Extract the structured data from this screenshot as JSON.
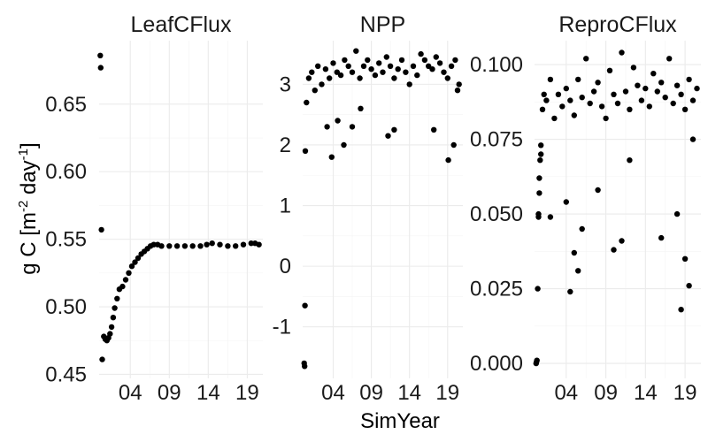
{
  "figure": {
    "xlabel": "SimYear",
    "ylabel_main": "g C [m",
    "ylabel_sup1": "-2",
    "ylabel_mid": " day",
    "ylabel_sup2": "-1",
    "ylabel_end": "]"
  },
  "chart_data": [
    {
      "type": "scatter",
      "title": "LeafCFlux",
      "xlabel": "SimYear",
      "ylabel": "g C [m-2 day-1]",
      "xlim": [
        0,
        21
      ],
      "ylim": [
        0.447,
        0.697
      ],
      "xticks": [
        4,
        9,
        14,
        19
      ],
      "xticklabels": [
        "04",
        "09",
        "14",
        "19"
      ],
      "yticks": [
        0.45,
        0.5,
        0.55,
        0.6,
        0.65
      ],
      "yticklabels": [
        "0.45",
        "0.50",
        "0.55",
        "0.60",
        "0.65"
      ],
      "grid": true,
      "legend": "none",
      "point_color": "#000000",
      "x": [
        0.15,
        0.2,
        0.3,
        0.4,
        0.6,
        0.8,
        1.0,
        1.2,
        1.4,
        1.6,
        1.8,
        2.0,
        2.3,
        2.6,
        3.0,
        3.4,
        3.8,
        4.2,
        4.6,
        5.0,
        5.4,
        5.8,
        6.2,
        6.6,
        7.0,
        7.5,
        8.0,
        9.0,
        10.0,
        11.0,
        12.0,
        13.0,
        13.8,
        14.5,
        15.5,
        16.5,
        17.5,
        18.5,
        19.5,
        20.0,
        20.5
      ],
      "y": [
        0.686,
        0.677,
        0.557,
        0.461,
        0.478,
        0.476,
        0.475,
        0.477,
        0.48,
        0.485,
        0.492,
        0.499,
        0.506,
        0.513,
        0.515,
        0.52,
        0.525,
        0.53,
        0.533,
        0.536,
        0.539,
        0.541,
        0.543,
        0.545,
        0.546,
        0.546,
        0.545,
        0.545,
        0.545,
        0.545,
        0.545,
        0.545,
        0.546,
        0.547,
        0.546,
        0.545,
        0.545,
        0.546,
        0.547,
        0.547,
        0.546
      ]
    },
    {
      "type": "scatter",
      "title": "NPP",
      "xlabel": "SimYear",
      "ylabel": "",
      "xlim": [
        0,
        21
      ],
      "ylim": [
        -1.85,
        3.72
      ],
      "xticks": [
        4,
        9,
        14,
        19
      ],
      "xticklabels": [
        "04",
        "09",
        "14",
        "19"
      ],
      "yticks": [
        -1,
        0,
        1,
        2,
        3
      ],
      "yticklabels": [
        "-1",
        "0",
        "1",
        "2",
        "3"
      ],
      "grid": true,
      "legend": "none",
      "point_color": "#000000",
      "x": [
        0.2,
        0.25,
        0.3,
        0.35,
        0.5,
        0.8,
        1.2,
        1.6,
        2.0,
        2.5,
        3.0,
        3.5,
        4.0,
        4.5,
        5.0,
        5.5,
        6.0,
        6.5,
        7.0,
        7.5,
        8.0,
        8.5,
        9.0,
        9.5,
        10.0,
        10.5,
        11.0,
        11.5,
        12.0,
        12.5,
        13.0,
        13.5,
        14.0,
        14.5,
        15.0,
        15.5,
        16.0,
        16.5,
        17.0,
        17.5,
        18.0,
        18.5,
        19.0,
        19.5,
        20.0,
        20.5,
        3.2,
        3.8,
        4.6,
        5.4,
        6.5,
        7.6,
        11.2,
        12.0,
        17.2,
        19.1,
        19.8,
        20.3
      ],
      "y": [
        -1.6,
        -1.65,
        -0.65,
        1.9,
        2.7,
        3.1,
        3.2,
        2.9,
        3.3,
        3.0,
        3.25,
        3.1,
        3.35,
        3.2,
        3.15,
        3.4,
        3.3,
        3.2,
        3.55,
        3.1,
        3.3,
        3.4,
        3.25,
        3.15,
        3.35,
        3.2,
        3.45,
        3.3,
        3.1,
        3.25,
        3.4,
        3.2,
        3.0,
        3.3,
        3.15,
        3.5,
        3.4,
        3.3,
        3.25,
        3.45,
        3.35,
        3.2,
        3.1,
        3.3,
        3.4,
        3.0,
        2.3,
        1.8,
        2.4,
        2.0,
        2.3,
        2.6,
        2.15,
        2.25,
        2.25,
        1.75,
        2.0,
        2.9
      ]
    },
    {
      "type": "scatter",
      "title": "ReproCFlux",
      "xlabel": "SimYear",
      "ylabel": "",
      "xlim": [
        0,
        21
      ],
      "ylim": [
        -0.005,
        0.108
      ],
      "xticks": [
        4,
        9,
        14,
        19
      ],
      "xticklabels": [
        "04",
        "09",
        "14",
        "19"
      ],
      "yticks": [
        0.0,
        0.025,
        0.05,
        0.075,
        0.1
      ],
      "yticklabels": [
        "0.000",
        "0.025",
        "0.050",
        "0.075",
        "0.100"
      ],
      "grid": true,
      "legend": "none",
      "point_color": "#000000",
      "x": [
        0.2,
        0.25,
        0.3,
        0.4,
        0.5,
        0.6,
        0.7,
        0.8,
        1.0,
        1.2,
        1.5,
        2.0,
        2.5,
        3.0,
        3.5,
        4.0,
        4.5,
        5.0,
        5.5,
        6.0,
        6.5,
        7.0,
        7.5,
        8.0,
        8.5,
        9.0,
        9.5,
        10.0,
        10.5,
        11.0,
        11.5,
        12.0,
        12.5,
        13.0,
        13.5,
        14.0,
        14.5,
        15.0,
        15.5,
        16.0,
        16.5,
        17.0,
        17.5,
        18.0,
        18.5,
        19.0,
        19.5,
        20.0,
        20.5,
        4.0,
        4.5,
        5.0,
        5.5,
        6.0,
        8.0,
        10.0,
        11.0,
        12.0,
        16.0,
        18.0,
        18.5,
        19.0,
        19.5,
        20.0,
        0.5,
        0.6,
        0.8,
        2.0
      ],
      "y": [
        0.0,
        0.0005,
        0.001,
        0.025,
        0.05,
        0.062,
        0.068,
        0.073,
        0.085,
        0.09,
        0.088,
        0.095,
        0.082,
        0.09,
        0.086,
        0.092,
        0.088,
        0.083,
        0.095,
        0.089,
        0.102,
        0.087,
        0.091,
        0.094,
        0.086,
        0.082,
        0.098,
        0.09,
        0.087,
        0.104,
        0.091,
        0.085,
        0.099,
        0.093,
        0.088,
        0.092,
        0.086,
        0.097,
        0.091,
        0.094,
        0.089,
        0.102,
        0.087,
        0.093,
        0.09,
        0.085,
        0.095,
        0.088,
        0.092,
        0.054,
        0.024,
        0.037,
        0.031,
        0.045,
        0.058,
        0.038,
        0.041,
        0.068,
        0.042,
        0.05,
        0.018,
        0.035,
        0.026,
        0.075,
        0.049,
        0.057,
        0.07,
        0.049
      ]
    }
  ]
}
